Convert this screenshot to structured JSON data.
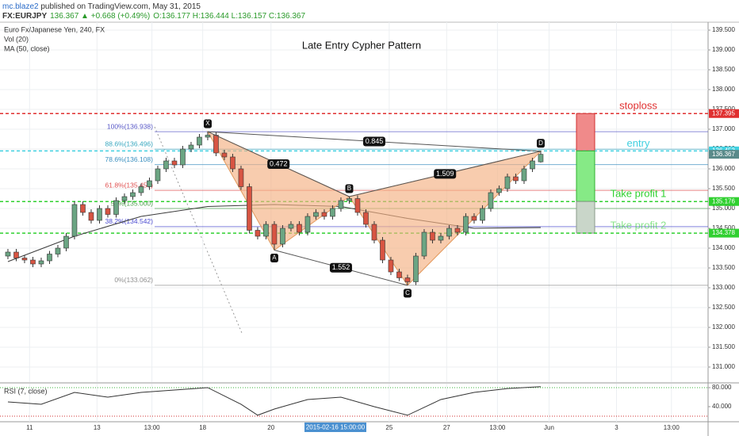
{
  "header": {
    "author": "mc.blaze2",
    "published": " published on TradingView.com, May 31, 2015",
    "symbol": "FX:EURJPY",
    "change": "136.367 ▲ +0.668 (+0.49%)",
    "ohlc": "O:136.177 H:136.444 L:136.157 C:136.367"
  },
  "chart_data": {
    "type": "candlestick",
    "title": "Late Entry Cypher Pattern",
    "symbol_label": "Euro Fx/Japanese Yen, 240, FX",
    "volume_label": "Vol (20)",
    "open": [
      133.8,
      133.9,
      133.75,
      133.7,
      133.6,
      133.68,
      133.85,
      134.0,
      134.3,
      135.1,
      134.9,
      134.7,
      135.0,
      134.85,
      135.2,
      135.3,
      135.4,
      135.55,
      135.7,
      136.0,
      136.2,
      136.1,
      136.5,
      136.6,
      136.8,
      136.85,
      136.4,
      136.3,
      136.0,
      135.55,
      134.45,
      134.3,
      134.6,
      134.1,
      134.5,
      134.6,
      134.4,
      134.8,
      134.9,
      134.8,
      135.0,
      135.2,
      135.25,
      134.9,
      134.6,
      134.2,
      133.7,
      133.4,
      133.25,
      133.15,
      133.8,
      134.4,
      134.2,
      134.3,
      134.5,
      134.4,
      134.8,
      134.7,
      135.0,
      135.4,
      135.5,
      135.8,
      135.7,
      136.0,
      136.177
    ],
    "high": [
      133.98,
      133.98,
      133.83,
      133.78,
      133.76,
      133.93,
      134.08,
      134.38,
      135.18,
      135.18,
      134.98,
      135.08,
      135.08,
      135.28,
      135.38,
      135.48,
      135.63,
      135.78,
      136.08,
      136.28,
      136.28,
      136.58,
      136.68,
      136.88,
      136.938,
      136.93,
      136.48,
      136.38,
      136.08,
      135.63,
      134.53,
      134.68,
      134.68,
      134.58,
      134.68,
      134.68,
      134.88,
      134.98,
      134.98,
      135.08,
      135.28,
      135.3,
      135.33,
      134.98,
      134.68,
      134.28,
      133.78,
      133.48,
      133.33,
      133.88,
      134.48,
      134.48,
      134.38,
      134.58,
      134.58,
      134.88,
      134.88,
      135.08,
      135.48,
      135.58,
      135.88,
      135.88,
      136.08,
      136.28,
      136.444
    ],
    "low": [
      133.72,
      133.67,
      133.62,
      133.52,
      133.52,
      133.6,
      133.77,
      133.92,
      134.22,
      134.82,
      134.62,
      134.62,
      134.77,
      134.77,
      135.12,
      135.22,
      135.32,
      135.47,
      135.62,
      135.92,
      136.02,
      136.02,
      136.42,
      136.52,
      136.72,
      136.32,
      136.22,
      135.92,
      135.47,
      134.37,
      134.22,
      134.22,
      133.95,
      134.02,
      134.42,
      134.32,
      134.32,
      134.72,
      134.72,
      134.72,
      134.92,
      135.12,
      134.82,
      134.52,
      134.12,
      133.62,
      133.32,
      133.17,
      133.062,
      133.07,
      133.72,
      134.12,
      134.12,
      134.22,
      134.32,
      134.32,
      134.62,
      134.62,
      134.92,
      135.32,
      135.42,
      135.62,
      135.62,
      135.92,
      136.157
    ],
    "close": [
      133.9,
      133.75,
      133.7,
      133.6,
      133.68,
      133.85,
      134.0,
      134.3,
      135.1,
      134.9,
      134.7,
      135.0,
      134.85,
      135.2,
      135.3,
      135.4,
      135.55,
      135.7,
      136.0,
      136.2,
      136.1,
      136.5,
      136.6,
      136.8,
      136.85,
      136.4,
      136.3,
      136.0,
      135.55,
      134.45,
      134.3,
      134.6,
      134.1,
      134.5,
      134.6,
      134.4,
      134.8,
      134.9,
      134.8,
      135.0,
      135.2,
      135.25,
      134.9,
      134.6,
      134.2,
      133.7,
      133.4,
      133.25,
      133.15,
      133.8,
      134.4,
      134.2,
      134.3,
      134.5,
      134.4,
      134.8,
      134.7,
      135.0,
      135.4,
      135.5,
      135.8,
      135.7,
      136.0,
      136.2,
      136.367
    ],
    "up_color": "#6ba583",
    "down_color": "#d75442",
    "last_price_color": "#5a8a8a",
    "xlim": [
      -0.95,
      84.1
    ],
    "xticks": [
      {
        "value": 2.6,
        "label": "11"
      },
      {
        "value": 10.7,
        "label": "13"
      },
      {
        "value": 17.3,
        "label": "13:00"
      },
      {
        "value": 23.4,
        "label": "18"
      },
      {
        "value": 31.6,
        "label": "20"
      },
      {
        "value": 45.8,
        "label": "25"
      },
      {
        "value": 52.7,
        "label": "27"
      },
      {
        "value": 58.8,
        "label": "13:00"
      },
      {
        "value": 65,
        "label": "Jun"
      },
      {
        "value": 73.1,
        "label": "3"
      },
      {
        "value": 79.7,
        "label": "13:00"
      }
    ],
    "ylim": [
      130.62,
      139.7
    ],
    "yticks": [
      {
        "value": 131,
        "label": "131.000"
      },
      {
        "value": 131.5,
        "label": "131.500"
      },
      {
        "value": 132,
        "label": "132.000"
      },
      {
        "value": 132.5,
        "label": "132.500"
      },
      {
        "value": 133,
        "label": "133.000"
      },
      {
        "value": 133.5,
        "label": "133.500"
      },
      {
        "value": 134,
        "label": "134.000"
      },
      {
        "value": 134.5,
        "label": "134.500"
      },
      {
        "value": 135,
        "label": "135.000"
      },
      {
        "value": 135.5,
        "label": "135.500"
      },
      {
        "value": 136,
        "label": "136.000"
      },
      {
        "value": 136.5,
        "label": "136.500"
      },
      {
        "value": 137,
        "label": "137.000"
      },
      {
        "value": 137.5,
        "label": "137.500"
      },
      {
        "value": 138,
        "label": "138.000"
      },
      {
        "value": 138.5,
        "label": "138.500"
      },
      {
        "value": 139,
        "label": "139.000"
      },
      {
        "value": 139.5,
        "label": "139.500"
      }
    ],
    "grid": true,
    "crosshair_label": "2015-02-16 15:00:00",
    "ma": {
      "name": "MA (50, close)",
      "color": "#3a3a3a",
      "x": [
        0,
        8,
        16,
        24,
        32,
        40,
        48,
        56,
        64
      ],
      "values": [
        133.66,
        134.3,
        134.8,
        135.05,
        135.1,
        135.05,
        134.75,
        134.5,
        134.52
      ]
    },
    "fib_levels": [
      {
        "label": "100%(136.938)",
        "price": 136.938,
        "color": "#5a5ac8"
      },
      {
        "label": "88.6%(136.496)",
        "price": 136.496,
        "color": "#3aa8c0"
      },
      {
        "label": "78.6%(136.108)",
        "price": 136.108,
        "color": "#3a8fbf"
      },
      {
        "label": "61.8%(135.457)",
        "price": 135.457,
        "color": "#e05050"
      },
      {
        "label": "50%(135.000)",
        "price": 135.0,
        "color": "#50a050"
      },
      {
        "label": "38.2%(134.542)",
        "price": 134.542,
        "color": "#4a4ad0"
      },
      {
        "label": "0%(133.062)",
        "price": 133.062,
        "color": "#909090"
      }
    ],
    "pattern": {
      "fill": "#f4b183",
      "points": [
        {
          "label": "X",
          "x": 24,
          "price": 136.938
        },
        {
          "label": "A",
          "x": 32,
          "price": 133.95
        },
        {
          "label": "B",
          "x": 41,
          "price": 135.3
        },
        {
          "label": "C",
          "x": 48,
          "price": 133.062
        },
        {
          "label": "D",
          "x": 64,
          "price": 136.444
        }
      ],
      "ratios": [
        0.845,
        0.472,
        1.509,
        1.552
      ]
    },
    "levels": [
      {
        "name": "stoploss",
        "price": 137.395,
        "color": "#e03030"
      },
      {
        "name": "entry",
        "price": 136.453,
        "color": "#40d0e0"
      },
      {
        "name": "Take profit 1",
        "price": 135.176,
        "color": "#30d030"
      },
      {
        "name": "Take profit 2",
        "price": 134.378,
        "color": "#30d030"
      }
    ],
    "rsi": {
      "name": "RSI (7, close)",
      "color": "#333333",
      "x": [
        0,
        4,
        8,
        12,
        16,
        20,
        24,
        28,
        30,
        32,
        36,
        40,
        44,
        48,
        52,
        56,
        60,
        64
      ],
      "values": [
        50,
        45,
        70,
        60,
        70,
        75,
        80,
        45,
        22,
        35,
        55,
        60,
        40,
        22,
        55,
        70,
        78,
        82
      ],
      "ylim": [
        8.3,
        88.3
      ],
      "yticks": [
        {
          "value": 80,
          "label": "80.000"
        },
        {
          "value": 40,
          "label": "40.000"
        }
      ],
      "levels": [
        80,
        20
      ]
    }
  }
}
